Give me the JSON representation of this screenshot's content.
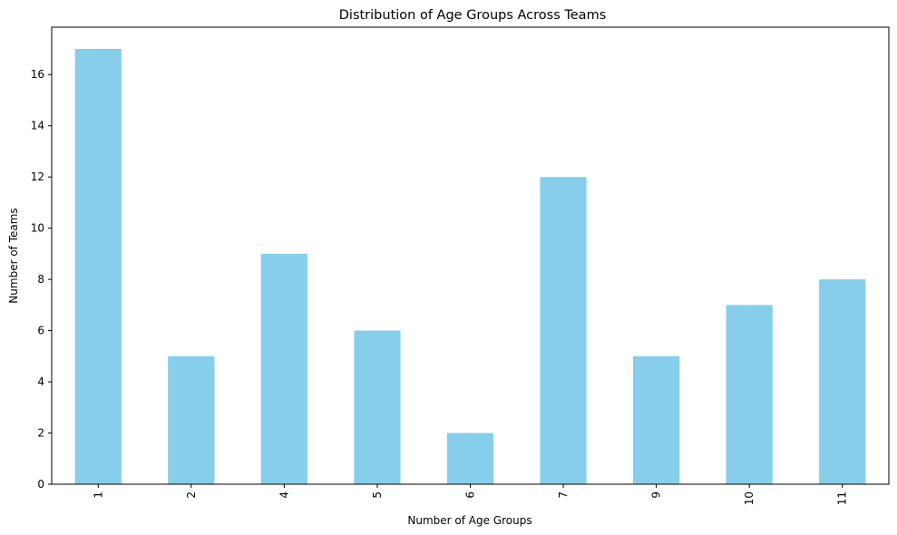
{
  "chart_data": {
    "type": "bar",
    "title": "Distribution of Age Groups Across Teams",
    "xlabel": "Number of Age Groups",
    "ylabel": "Number of Teams",
    "categories": [
      "1",
      "2",
      "4",
      "5",
      "6",
      "7",
      "9",
      "10",
      "11"
    ],
    "values": [
      17,
      5,
      9,
      6,
      2,
      12,
      5,
      7,
      8
    ],
    "ylim": [
      0,
      17.85
    ],
    "yticks": [
      0,
      2,
      4,
      6,
      8,
      10,
      12,
      14,
      16
    ],
    "bar_color": "#87CEEB",
    "grid": false,
    "legend": "none"
  }
}
